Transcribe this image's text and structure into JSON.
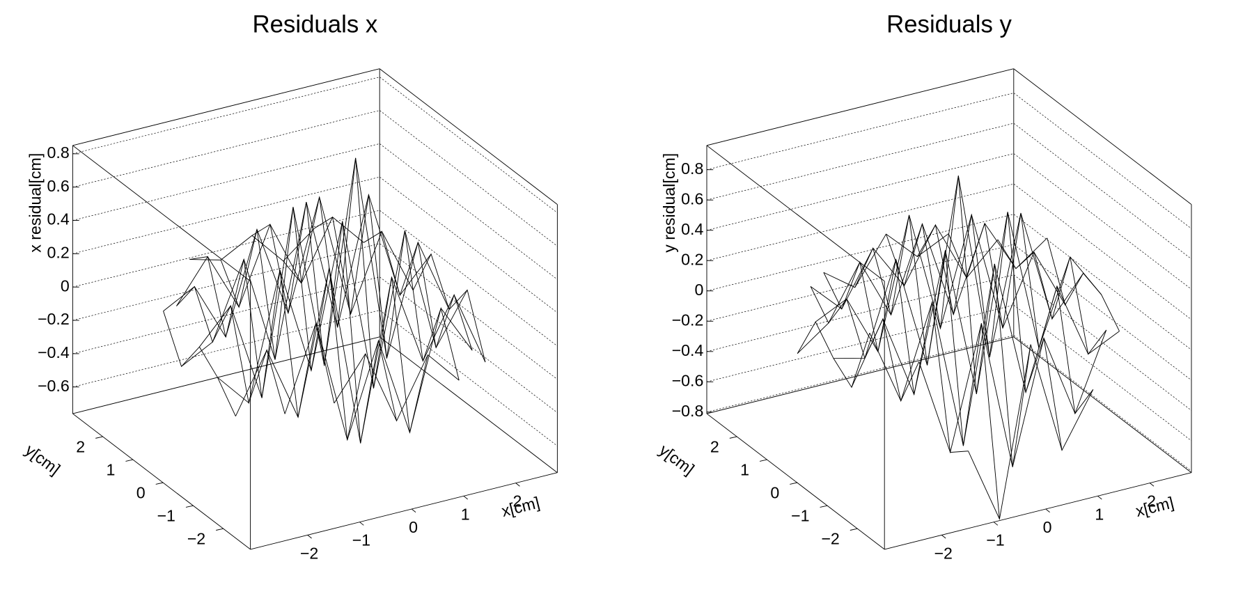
{
  "chart_data": [
    {
      "type": "surface",
      "title": "Residuals x",
      "xlabel": "x[cm]",
      "ylabel": "y[cm]",
      "zlabel": "x residual[cm]",
      "x": [
        -2.4,
        -1.8,
        -1.2,
        -0.6,
        0,
        0.6,
        1.2,
        1.8,
        2.4
      ],
      "y": [
        -2.4,
        -1.8,
        -1.2,
        -0.6,
        0,
        0.6,
        1.2,
        1.8,
        2.4
      ],
      "z": [
        [
          null,
          null,
          -0.1,
          0.15,
          -0.3,
          0.05,
          -0.15,
          null,
          null
        ],
        [
          null,
          -0.2,
          0.3,
          -0.45,
          0.1,
          -0.5,
          0.2,
          -0.1,
          null
        ],
        [
          -0.25,
          0.1,
          -0.35,
          0.5,
          -0.6,
          0.35,
          -0.2,
          0.15,
          -0.3
        ],
        [
          -0.1,
          -0.3,
          0.45,
          -0.2,
          0.65,
          -0.4,
          0.5,
          -0.25,
          0.05
        ],
        [
          0.0,
          0.2,
          -0.4,
          0.7,
          -0.3,
          0.9,
          -0.35,
          0.3,
          -0.15
        ],
        [
          -0.2,
          -0.1,
          0.35,
          -0.3,
          0.6,
          -0.2,
          0.55,
          -0.1,
          0.1
        ],
        [
          0.05,
          0.15,
          -0.2,
          0.4,
          -0.15,
          0.5,
          -0.25,
          0.2,
          -0.2
        ],
        [
          null,
          -0.05,
          0.2,
          -0.15,
          0.3,
          -0.1,
          0.25,
          0.05,
          null
        ],
        [
          null,
          null,
          0.1,
          0.05,
          0.15,
          -0.05,
          0.1,
          null,
          null
        ]
      ],
      "color": "#000000",
      "xlim": [
        -3.1,
        2.8
      ],
      "ylim": [
        -2.9,
        3.0
      ],
      "zlim": [
        -0.76,
        0.85
      ],
      "xticks": [
        {
          "value": -2,
          "label": "−2"
        },
        {
          "value": -1,
          "label": "−1"
        },
        0,
        1,
        2
      ],
      "yticks": [
        {
          "value": -2,
          "label": "−2"
        },
        {
          "value": -1,
          "label": "−1"
        },
        0,
        1,
        2
      ],
      "zticks": [
        {
          "value": -0.6,
          "label": "−0.6"
        },
        {
          "value": -0.4,
          "label": "−0.4"
        },
        {
          "value": -0.2,
          "label": "−0.2"
        },
        0,
        0.2,
        0.4,
        0.6,
        0.8
      ],
      "grid": true
    },
    {
      "type": "surface",
      "title": "Residuals y",
      "xlabel": "x[cm]",
      "ylabel": "y[cm]",
      "zlabel": "y residual[cm]",
      "x": [
        -2.4,
        -1.8,
        -1.2,
        -0.6,
        0,
        0.6,
        1.2,
        1.8,
        2.4
      ],
      "y": [
        -2.4,
        -1.8,
        -1.2,
        -0.6,
        0,
        0.6,
        1.2,
        1.8,
        2.4
      ],
      "z": [
        [
          null,
          null,
          -0.4,
          -0.9,
          0.2,
          -0.55,
          -0.2,
          null,
          null
        ],
        [
          null,
          0.15,
          -0.5,
          0.3,
          -0.7,
          0.1,
          -0.45,
          0.05,
          null
        ],
        [
          0.3,
          -0.2,
          0.4,
          -0.6,
          0.55,
          -0.35,
          0.3,
          -0.2,
          -0.1
        ],
        [
          -0.15,
          0.25,
          -0.3,
          0.6,
          -0.4,
          0.75,
          -0.2,
          0.35,
          0.05
        ],
        [
          -0.05,
          -0.1,
          0.5,
          -0.25,
          0.95,
          -0.3,
          0.6,
          -0.15,
          0.1
        ],
        [
          0.1,
          0.2,
          -0.2,
          0.65,
          -0.15,
          0.55,
          -0.25,
          0.2,
          -0.2
        ],
        [
          -0.2,
          -0.05,
          0.3,
          -0.1,
          0.45,
          -0.2,
          0.35,
          0.0,
          0.15
        ],
        [
          null,
          0.1,
          -0.1,
          0.25,
          -0.05,
          0.3,
          -0.1,
          0.1,
          null
        ],
        [
          null,
          null,
          0.05,
          -0.1,
          0.2,
          0.0,
          0.1,
          null,
          null
        ]
      ],
      "color": "#000000",
      "xlim": [
        -3.1,
        2.8
      ],
      "ylim": [
        -2.9,
        3.0
      ],
      "zlim": [
        -0.81,
        0.96
      ],
      "xticks": [
        {
          "value": -2,
          "label": "−2"
        },
        {
          "value": -1,
          "label": "−1"
        },
        0,
        1,
        2
      ],
      "yticks": [
        {
          "value": -2,
          "label": "−2"
        },
        {
          "value": -1,
          "label": "−1"
        },
        0,
        1,
        2
      ],
      "zticks": [
        {
          "value": -0.8,
          "label": "−0.8"
        },
        {
          "value": -0.6,
          "label": "−0.6"
        },
        {
          "value": -0.4,
          "label": "−0.4"
        },
        {
          "value": -0.2,
          "label": "−0.2"
        },
        0,
        0.2,
        0.4,
        0.6,
        0.8
      ],
      "grid": true
    }
  ]
}
